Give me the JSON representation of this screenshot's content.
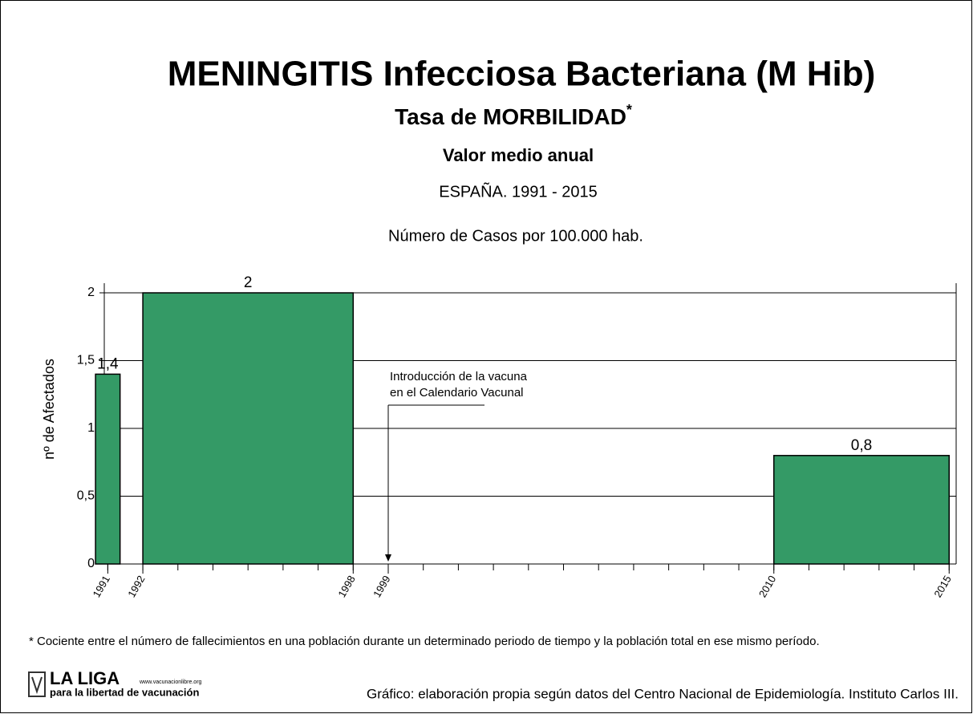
{
  "chart_data": {
    "type": "bar",
    "title": "MENINGITIS Infecciosa Bacteriana (M Hib)",
    "subtitle": "Tasa de MORBILIDAD",
    "subtitle_mark": "*",
    "subtitle2": "Valor medio anual",
    "subtitle3": "ESPAÑA. 1991 - 2015",
    "units": "Número de Casos por 100.000 hab.",
    "ylabel": "nº de Afectados",
    "bars": [
      {
        "start": 1991,
        "end": 1991,
        "value": 1.4,
        "value_label": "1,4"
      },
      {
        "start": 1992,
        "end": 1998,
        "value": 2,
        "value_label": "2"
      },
      {
        "start": 2010,
        "end": 2015,
        "value": 0.8,
        "value_label": "0,8"
      }
    ],
    "color": "#349a66",
    "xlim": [
      1990.9,
      2015.2
    ],
    "xticks": [
      1991,
      1992,
      1998,
      1999,
      2010,
      2015
    ],
    "xminor": [
      1991,
      1992,
      1993,
      1994,
      1995,
      1996,
      1997,
      1998,
      1999,
      2000,
      2001,
      2002,
      2003,
      2004,
      2005,
      2006,
      2007,
      2008,
      2009,
      2010,
      2011,
      2012,
      2013,
      2014,
      2015
    ],
    "ylim": [
      0,
      2
    ],
    "yticks": [
      0,
      {
        "value": 0.5,
        "label": "0,5"
      },
      1,
      {
        "value": 1.5,
        "label": "1,5"
      },
      2
    ],
    "grid": true,
    "annotation": {
      "x": 1999,
      "lines": [
        "Introducción de la vacuna",
        "en el Calendario Vacunal"
      ]
    },
    "footnote": "* Cociente entre el número de fallecimientos en una población durante un determinado periodo de tiempo y la población total en ese mismo período.",
    "logo": {
      "name": "LA LIGA",
      "url": "www.vacunacionlibre.org",
      "tagline": "para la libertad de vacunación"
    },
    "source": "Gráfico: elaboración propia según datos del Centro Nacional de Epidemiología. Instituto Carlos III."
  }
}
